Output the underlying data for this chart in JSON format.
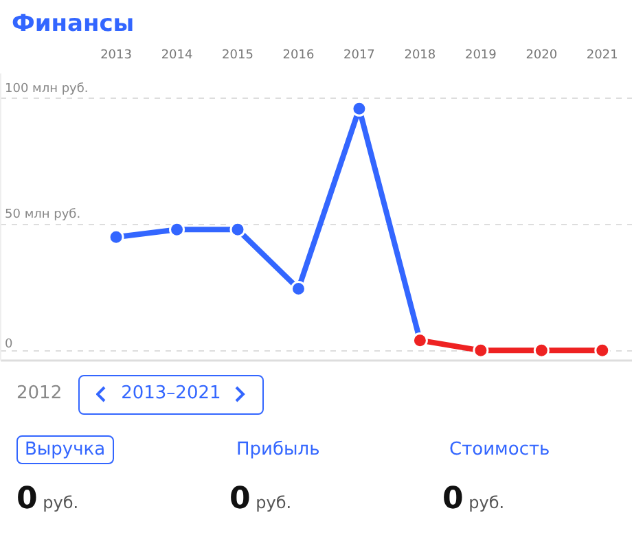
{
  "chart_data": {
    "type": "line",
    "title": "Финансы",
    "xlim": [
      2011.1,
      2021.5
    ],
    "xticks": [
      2013,
      2014,
      2015,
      2016,
      2017,
      2018,
      2019,
      2020,
      2021
    ],
    "ylim": [
      -4,
      110
    ],
    "yticks": [
      {
        "value": 0,
        "label": "0"
      },
      {
        "value": 50,
        "label": "50 млн руб."
      },
      {
        "value": 100,
        "label": "100 млн руб."
      }
    ],
    "series": [
      {
        "color": "#3366ff",
        "x": [
          2013,
          2014,
          2015,
          2016,
          2017,
          2018
        ],
        "values": [
          45,
          48,
          48,
          24.5,
          96,
          4
        ]
      },
      {
        "color": "#ee2222",
        "x": [
          2018,
          2019,
          2020,
          2021
        ],
        "values": [
          4,
          0,
          0,
          0
        ]
      }
    ],
    "marker": "circle",
    "grid": "y",
    "annotations": [
      "2012",
      "2013–2021",
      "Выручка",
      "Прибыль",
      "Стоимость",
      "0 руб.",
      "0 руб.",
      "0 руб."
    ]
  }
}
